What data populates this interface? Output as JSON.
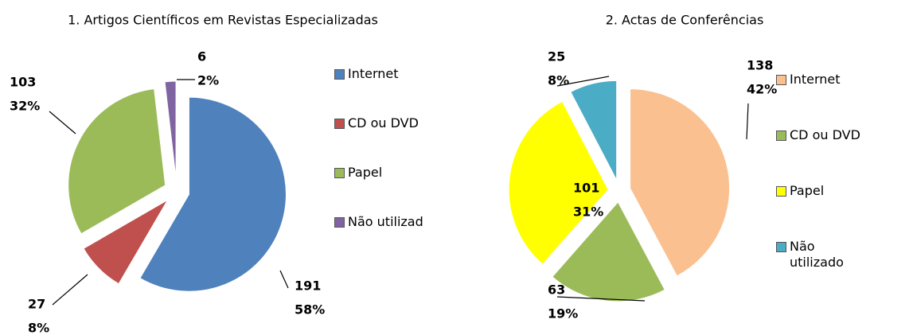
{
  "chart_data": [
    {
      "type": "pie",
      "title": "1. Artigos Científicos em Revistas Especializadas",
      "categories": [
        "Internet",
        "CD ou DVD",
        "Papel",
        "Não utilizad"
      ],
      "values": [
        191,
        27,
        103,
        6
      ],
      "percent_labels": [
        "58%",
        "8%",
        "32%",
        "2%"
      ],
      "colors": [
        "#4f81bd",
        "#c0504d",
        "#9bbb59",
        "#8064a2"
      ],
      "legend": "right"
    },
    {
      "type": "pie",
      "title": "2. Actas de Conferências",
      "categories": [
        "Internet",
        "CD ou DVD",
        "Papel",
        "Não utilizado"
      ],
      "values": [
        138,
        63,
        101,
        25
      ],
      "percent_labels": [
        "42%",
        "19%",
        "31%",
        "8%"
      ],
      "colors": [
        "#fac090",
        "#9bbb59",
        "#ffff00",
        "#4bacc6"
      ],
      "legend": "right"
    }
  ]
}
